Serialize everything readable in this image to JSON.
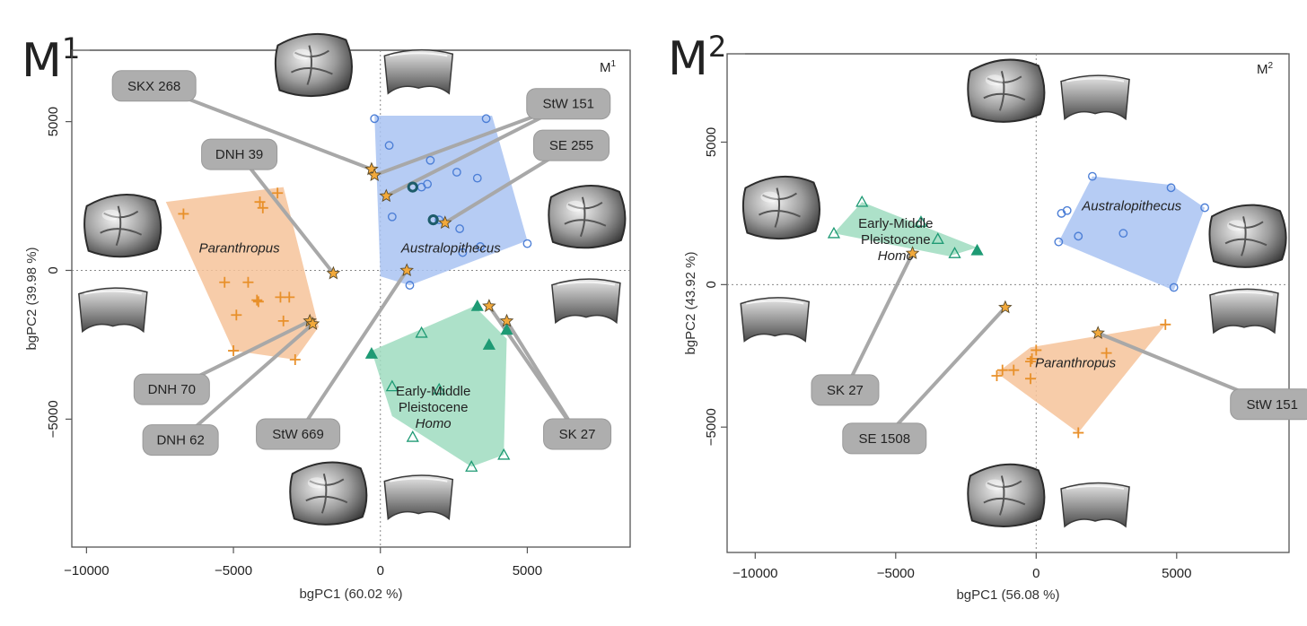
{
  "chart_data": [
    {
      "type": "scatter",
      "panel_label_main": "M",
      "panel_label_sup": "1",
      "corner_label_main": "M",
      "corner_label_sup": "1",
      "xlabel": "bgPC1 (60.02 %)",
      "ylabel": "bgPC2 (39.98 %)",
      "xlim": [
        -10500,
        8500
      ],
      "ylim": [
        -9300,
        7400
      ],
      "xticks": [
        -10000,
        -5000,
        0,
        5000
      ],
      "yticks": [
        -5000,
        0,
        5000
      ],
      "tick_labels_x": [
        "−10000",
        "−5000",
        "0",
        "5000"
      ],
      "tick_labels_y": [
        "−5000",
        "0",
        "5000"
      ],
      "groups": [
        {
          "name": "Paranthropus",
          "label_lines": [
            "Paranthropus"
          ],
          "italic_lines": [
            0
          ],
          "label_at": [
            -4800,
            600
          ],
          "color": "#f6c39a",
          "marker": "plus",
          "marker_color": "#e8902a",
          "hull": [
            [
              -7300,
              2300
            ],
            [
              -3300,
              2800
            ],
            [
              -2100,
              -1900
            ],
            [
              -2900,
              -3000
            ],
            [
              -5000,
              -2700
            ]
          ],
          "points": [
            [
              -6700,
              1900
            ],
            [
              -4100,
              2300
            ],
            [
              -4000,
              2100
            ],
            [
              -3500,
              2600
            ],
            [
              -5300,
              -400
            ],
            [
              -4500,
              -400
            ],
            [
              -4900,
              -1500
            ],
            [
              -4200,
              -1000
            ],
            [
              -4150,
              -1050
            ],
            [
              -3400,
              -900
            ],
            [
              -3100,
              -900
            ],
            [
              -3300,
              -1700
            ],
            [
              -2900,
              -3000
            ],
            [
              -5000,
              -2700
            ]
          ]
        },
        {
          "name": "Australopithecus",
          "label_lines": [
            "Australopithecus"
          ],
          "italic_lines": [
            0
          ],
          "label_at": [
            2400,
            600
          ],
          "color": "#a9c3f2",
          "marker": "circle",
          "marker_color": "#4d7fd6",
          "hull": [
            [
              -200,
              5200
            ],
            [
              3800,
              5200
            ],
            [
              5000,
              1000
            ],
            [
              1000,
              -500
            ],
            [
              0,
              -200
            ]
          ],
          "points": [
            [
              -200,
              5100
            ],
            [
              3600,
              5100
            ],
            [
              300,
              4200
            ],
            [
              1700,
              3700
            ],
            [
              1400,
              2800
            ],
            [
              1600,
              2900
            ],
            [
              2600,
              3300
            ],
            [
              3300,
              3100
            ],
            [
              2700,
              1400
            ],
            [
              3400,
              800
            ],
            [
              5000,
              900
            ],
            [
              400,
              1800
            ],
            [
              1000,
              -500
            ],
            [
              2000,
              1700
            ],
            [
              2800,
              600
            ]
          ],
          "bold_points": [
            [
              1100,
              2800
            ],
            [
              1800,
              1700
            ]
          ]
        },
        {
          "name": "Early-Middle Pleistocene Homo",
          "label_lines": [
            "Early-Middle",
            "Pleistocene",
            "Homo"
          ],
          "italic_lines": [
            2
          ],
          "label_at": [
            1800,
            -4200
          ],
          "color": "#9fdcc0",
          "marker": "triangle",
          "marker_color": "#1e9a74",
          "hull": [
            [
              -300,
              -2700
            ],
            [
              3200,
              -1200
            ],
            [
              4300,
              -2300
            ],
            [
              4200,
              -6200
            ],
            [
              3100,
              -6600
            ],
            [
              400,
              -4900
            ]
          ],
          "points": [
            [
              1400,
              -2100
            ],
            [
              400,
              -3900
            ],
            [
              2000,
              -4000
            ],
            [
              1100,
              -5600
            ],
            [
              3100,
              -6600
            ],
            [
              4200,
              -6200
            ]
          ],
          "filled_points": [
            [
              -300,
              -2800
            ],
            [
              3300,
              -1200
            ],
            [
              3700,
              -2500
            ],
            [
              4300,
              -2000
            ]
          ]
        }
      ],
      "specimens": [
        {
          "name": "SKX 268",
          "pos": [
            -300,
            3400
          ],
          "label_at": [
            -7700,
            6200
          ]
        },
        {
          "name": "DNH 39",
          "pos": [
            -1600,
            -100
          ],
          "label_at": [
            -4800,
            3900
          ]
        },
        {
          "name": "StW 151",
          "pos": [
            -200,
            3200
          ],
          "label_at": [
            6400,
            5600
          ]
        },
        {
          "name": "SE 255",
          "pos": [
            2200,
            1600
          ],
          "label_at": [
            6500,
            4200
          ]
        },
        {
          "name": "StW 151 b",
          "pos": [
            200,
            2500
          ],
          "hidden_label": true
        },
        {
          "name": "DNH 70",
          "pos": [
            -2400,
            -1700
          ],
          "label_at": [
            -7100,
            -4000
          ]
        },
        {
          "name": "DNH 62",
          "pos": [
            -2300,
            -1800
          ],
          "label_at": [
            -6800,
            -5700
          ]
        },
        {
          "name": "StW 669",
          "pos": [
            900,
            0
          ],
          "label_at": [
            -2800,
            -5500
          ]
        },
        {
          "name": "SK 27",
          "pos": [
            3700,
            -1200
          ],
          "label_at": [
            6700,
            -5500
          ]
        },
        {
          "name": "SK 27 b",
          "pos": [
            4300,
            -1700
          ],
          "hidden_label": true
        }
      ],
      "callout_lines": [
        {
          "from": [
            -7700,
            6200
          ],
          "to": [
            -300,
            3400
          ]
        },
        {
          "from": [
            -4800,
            3900
          ],
          "to": [
            -1600,
            -100
          ]
        },
        {
          "from": [
            6400,
            5600
          ],
          "to": [
            -200,
            3200
          ]
        },
        {
          "from": [
            6400,
            5600
          ],
          "to": [
            200,
            2500
          ]
        },
        {
          "from": [
            6500,
            4200
          ],
          "to": [
            2200,
            1600
          ]
        },
        {
          "from": [
            -7100,
            -4000
          ],
          "to": [
            -2400,
            -1700
          ]
        },
        {
          "from": [
            -6800,
            -5700
          ],
          "to": [
            -2300,
            -1800
          ]
        },
        {
          "from": [
            -2800,
            -5500
          ],
          "to": [
            900,
            0
          ]
        },
        {
          "from": [
            6700,
            -5500
          ],
          "to": [
            3700,
            -1200
          ]
        },
        {
          "from": [
            6700,
            -5500
          ],
          "to": [
            4300,
            -1700
          ]
        }
      ],
      "tooth_icons": [
        {
          "name": "top-occlusal",
          "kind": "occlusal",
          "at": [
            -2300,
            6900
          ]
        },
        {
          "name": "top-side",
          "kind": "side",
          "at": [
            1300,
            6700
          ]
        },
        {
          "name": "left-occlusal",
          "kind": "occlusal",
          "at": [
            -8800,
            1500
          ]
        },
        {
          "name": "left-side",
          "kind": "side",
          "at": [
            -9100,
            -1300
          ]
        },
        {
          "name": "right-occlusal",
          "kind": "occlusal",
          "at": [
            7000,
            1800
          ]
        },
        {
          "name": "right-side",
          "kind": "side",
          "at": [
            7000,
            -1000
          ]
        },
        {
          "name": "bottom-occlusal",
          "kind": "occlusal",
          "at": [
            -1800,
            -7500
          ]
        },
        {
          "name": "bottom-side",
          "kind": "side",
          "at": [
            1300,
            -7600
          ]
        }
      ]
    },
    {
      "type": "scatter",
      "panel_label_main": "M",
      "panel_label_sup": "2",
      "corner_label_main": "M",
      "corner_label_sup": "2",
      "xlabel": "bgPC1 (56.08 %)",
      "ylabel": "bgPC2 (43.92 %)",
      "xlim": [
        -11000,
        9000
      ],
      "ylim": [
        -9400,
        8100
      ],
      "xticks": [
        -10000,
        -5000,
        0,
        5000
      ],
      "yticks": [
        -5000,
        0,
        5000
      ],
      "tick_labels_x": [
        "−10000",
        "−5000",
        "0",
        "5000"
      ],
      "tick_labels_y": [
        "−5000",
        "0",
        "5000"
      ],
      "groups": [
        {
          "name": "Early-Middle Pleistocene Homo",
          "label_lines": [
            "Early-Middle",
            "Pleistocene",
            "Homo"
          ],
          "italic_lines": [
            2
          ],
          "label_at": [
            -5000,
            2000
          ],
          "color": "#9fdcc0",
          "marker": "triangle",
          "marker_color": "#1e9a74",
          "hull": [
            [
              -7200,
              1800
            ],
            [
              -6200,
              2900
            ],
            [
              -2100,
              1300
            ],
            [
              -3100,
              1000
            ]
          ],
          "points": [
            [
              -6200,
              2900
            ],
            [
              -7200,
              1800
            ],
            [
              -4100,
              2200
            ],
            [
              -3500,
              1600
            ],
            [
              -2900,
              1100
            ]
          ],
          "filled_points": [
            [
              -2100,
              1200
            ]
          ]
        },
        {
          "name": "Australopithecus",
          "label_lines": [
            "Australopithecus"
          ],
          "italic_lines": [
            0
          ],
          "label_at": [
            3400,
            2600
          ],
          "color": "#a9c3f2",
          "marker": "circle",
          "marker_color": "#4d7fd6",
          "hull": [
            [
              800,
              1500
            ],
            [
              2000,
              3800
            ],
            [
              4800,
              3500
            ],
            [
              6000,
              2700
            ],
            [
              4900,
              -200
            ]
          ],
          "points": [
            [
              2000,
              3800
            ],
            [
              4800,
              3400
            ],
            [
              6000,
              2700
            ],
            [
              900,
              2500
            ],
            [
              1100,
              2600
            ],
            [
              1500,
              1700
            ],
            [
              3100,
              1800
            ],
            [
              800,
              1500
            ],
            [
              4900,
              -100
            ]
          ]
        },
        {
          "name": "Paranthropus",
          "label_lines": [
            "Paranthropus"
          ],
          "italic_lines": [
            0
          ],
          "label_at": [
            1400,
            -2900
          ],
          "color": "#f6c39a",
          "marker": "plus",
          "marker_color": "#e8902a",
          "hull": [
            [
              -1400,
              -3100
            ],
            [
              -200,
              -2200
            ],
            [
              4600,
              -1400
            ],
            [
              1500,
              -5200
            ]
          ],
          "points": [
            [
              -1400,
              -3200
            ],
            [
              -1200,
              -3000
            ],
            [
              -800,
              -3000
            ],
            [
              -200,
              -2700
            ],
            [
              -150,
              -2600
            ],
            [
              0,
              -2300
            ],
            [
              4600,
              -1400
            ],
            [
              2500,
              -2400
            ],
            [
              -200,
              -3300
            ],
            [
              1500,
              -5200
            ]
          ]
        }
      ],
      "specimens": [
        {
          "name": "SK 27",
          "pos": [
            -4400,
            1100
          ],
          "label_at": [
            -6800,
            -3700
          ]
        },
        {
          "name": "SE 1508",
          "pos": [
            -1100,
            -800
          ],
          "label_at": [
            -5400,
            -5400
          ]
        },
        {
          "name": "StW 151",
          "pos": [
            2200,
            -1700
          ],
          "label_at": [
            8400,
            -4200
          ]
        }
      ],
      "callout_lines": [
        {
          "from": [
            -6800,
            -3700
          ],
          "to": [
            -4400,
            1100
          ]
        },
        {
          "from": [
            -5400,
            -5400
          ],
          "to": [
            -1100,
            -800
          ]
        },
        {
          "from": [
            8400,
            -4200
          ],
          "to": [
            2200,
            -1700
          ]
        }
      ],
      "tooth_icons": [
        {
          "name": "top-occlusal",
          "kind": "occlusal",
          "at": [
            -1100,
            6800
          ]
        },
        {
          "name": "top-side",
          "kind": "side",
          "at": [
            2100,
            6600
          ]
        },
        {
          "name": "left-occlusal",
          "kind": "occlusal",
          "at": [
            -9100,
            2700
          ]
        },
        {
          "name": "left-side",
          "kind": "side",
          "at": [
            -9300,
            -1200
          ]
        },
        {
          "name": "right-occlusal",
          "kind": "occlusal",
          "at": [
            7500,
            1700
          ]
        },
        {
          "name": "right-side",
          "kind": "side",
          "at": [
            7400,
            -900
          ]
        },
        {
          "name": "bottom-occlusal",
          "kind": "occlusal",
          "at": [
            -1100,
            -7400
          ]
        },
        {
          "name": "bottom-side",
          "kind": "side",
          "at": [
            2100,
            -7700
          ]
        }
      ]
    }
  ]
}
